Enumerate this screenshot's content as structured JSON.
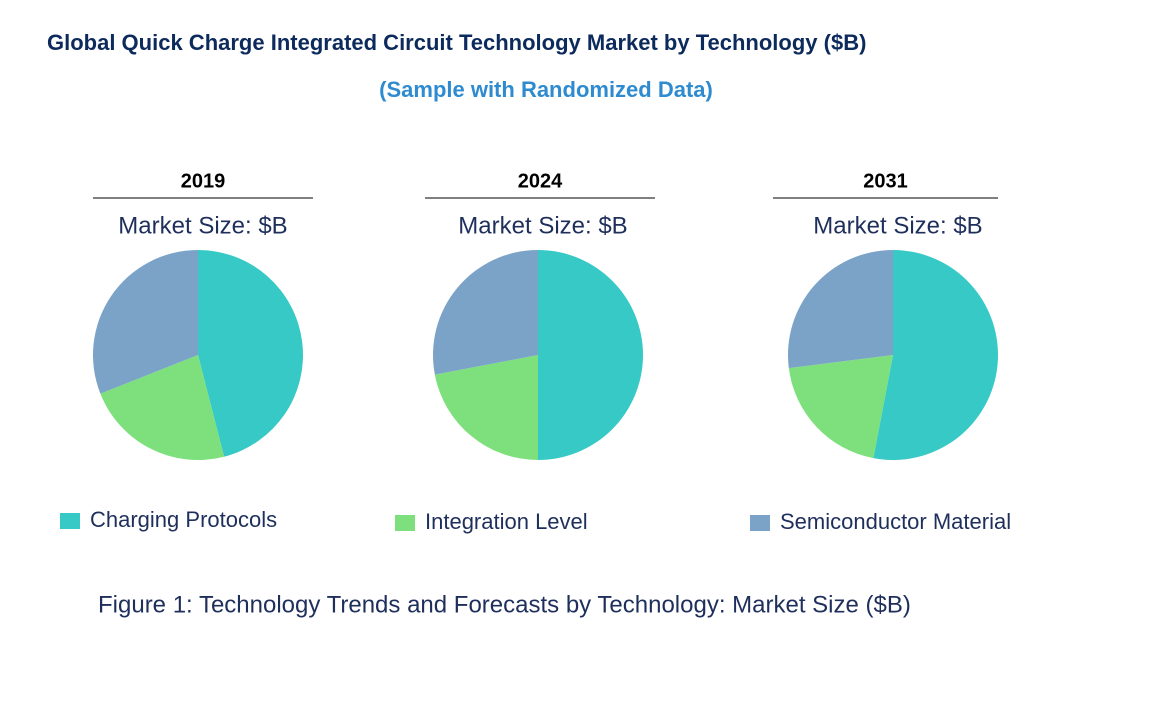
{
  "title": "Global Quick Charge Integrated Circuit Technology Market by  Technology ($B)",
  "subtitle": "(Sample with Randomized Data)",
  "caption": "Figure 1: Technology Trends and Forecasts by Technology: Market Size ($B)",
  "chart_data": [
    {
      "type": "pie",
      "title": "2019",
      "subtitle": "Market Size: $B",
      "categories": [
        "Charging Protocols",
        "Integration Level",
        "Semiconductor Material"
      ],
      "values": [
        46,
        23,
        31
      ],
      "colors": [
        "#36c9c6",
        "#7de07d",
        "#7ba3c8"
      ]
    },
    {
      "type": "pie",
      "title": "2024",
      "subtitle": "Market Size: $B",
      "categories": [
        "Charging Protocols",
        "Integration Level",
        "Semiconductor Material"
      ],
      "values": [
        50,
        22,
        28
      ],
      "colors": [
        "#36c9c6",
        "#7de07d",
        "#7ba3c8"
      ]
    },
    {
      "type": "pie",
      "title": "2031",
      "subtitle": "Market Size: $B",
      "categories": [
        "Charging Protocols",
        "Integration Level",
        "Semiconductor Material"
      ],
      "values": [
        53,
        20,
        27
      ],
      "colors": [
        "#36c9c6",
        "#7de07d",
        "#7ba3c8"
      ]
    }
  ]
}
